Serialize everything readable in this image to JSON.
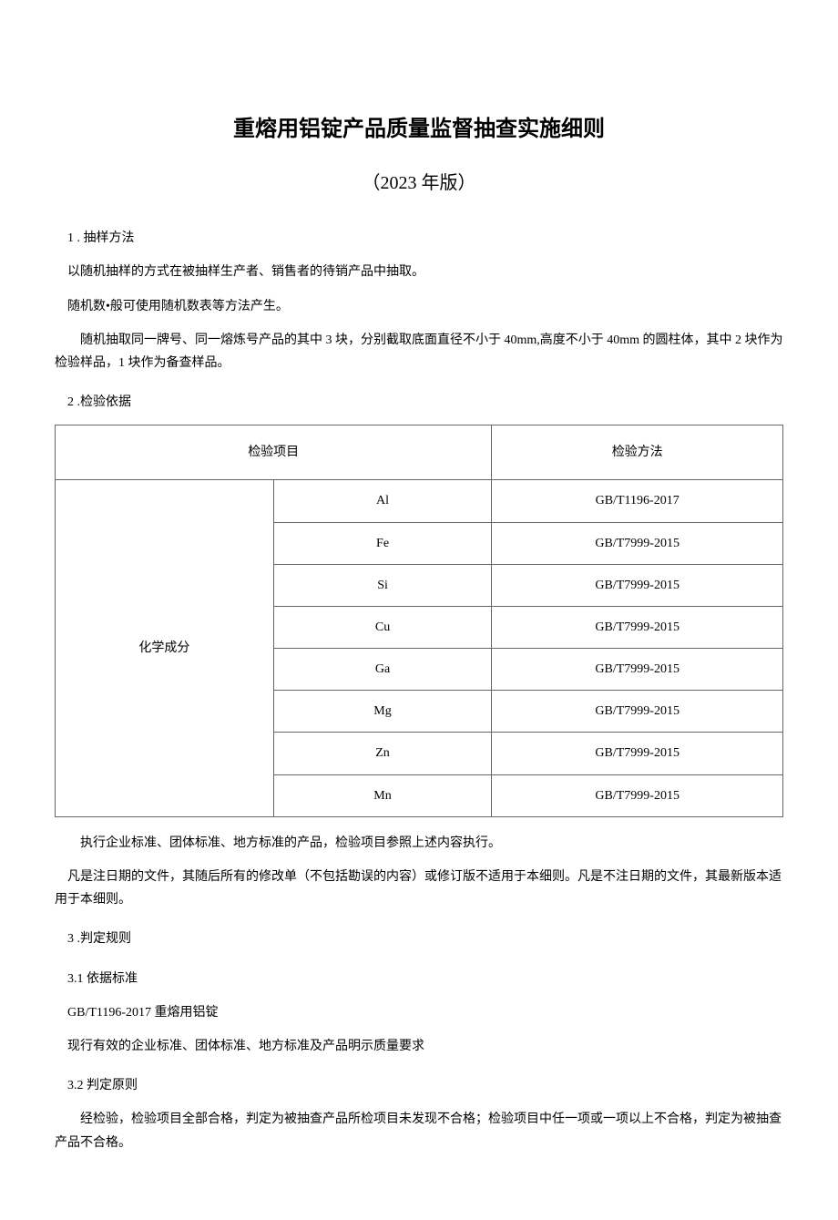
{
  "title": "重熔用铝锭产品质量监督抽查实施细则",
  "subtitle": "（2023 年版）",
  "section1": {
    "heading": "1 . 抽样方法",
    "p1": "以随机抽样的方式在被抽样生产者、销售者的待销产品中抽取。",
    "p2": "随机数•般可使用随机数表等方法产生。",
    "p3": "随机抽取同一牌号、同一熔炼号产品的其中 3 块，分别截取底面直径不小于 40mm,高度不小于 40mm 的圆柱体，其中 2 块作为检验样品，1 块作为备查样品。"
  },
  "section2": {
    "heading": "2 .检验依据",
    "table": {
      "header_item": "检验项目",
      "header_method": "检验方法",
      "group_label": "化学成分",
      "rows": [
        {
          "sub": "Al",
          "method": "GB/T1196-2017"
        },
        {
          "sub": "Fe",
          "method": "GB/T7999-2015"
        },
        {
          "sub": "Si",
          "method": "GB/T7999-2015"
        },
        {
          "sub": "Cu",
          "method": "GB/T7999-2015"
        },
        {
          "sub": "Ga",
          "method": "GB/T7999-2015"
        },
        {
          "sub": "Mg",
          "method": "GB/T7999-2015"
        },
        {
          "sub": "Zn",
          "method": "GB/T7999-2015"
        },
        {
          "sub": "Mn",
          "method": "GB/T7999-2015"
        }
      ]
    },
    "p1": "执行企业标准、团体标准、地方标准的产品，检验项目参照上述内容执行。",
    "p2": "凡是注日期的文件，其随后所有的修改单（不包括勘误的内容）或修订版不适用于本细则。凡是不注日期的文件，其最新版本适用于本细则。"
  },
  "section3": {
    "heading": "3 .判定规则",
    "sub1_heading": "3.1   依据标准",
    "sub1_p1": "GB/T1196-2017 重熔用铝锭",
    "sub1_p2": "现行有效的企业标准、团体标准、地方标准及产品明示质量要求",
    "sub2_heading": "3.2   判定原则",
    "sub2_p1": "经检验，检验项目全部合格，判定为被抽查产品所检项目未发现不合格；检验项目中任一项或一项以上不合格，判定为被抽查产品不合格。"
  }
}
